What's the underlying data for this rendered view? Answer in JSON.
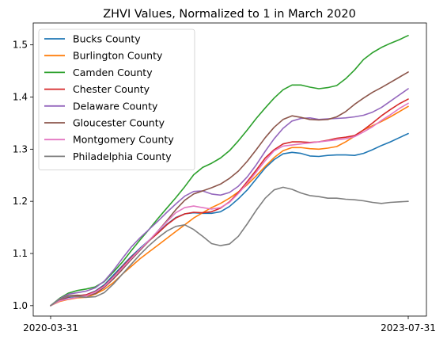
{
  "chart_data": {
    "type": "line",
    "title": "ZHVI Values, Normalized to 1 in March 2020",
    "xlabel": "",
    "ylabel": "",
    "x_tick_labels": [
      "2020-03-31",
      "2023-07-31"
    ],
    "x_start": "2020-03-31",
    "x_end": "2023-07-31",
    "ylim": [
      0.98,
      1.542
    ],
    "y_ticks": [
      1.0,
      1.1,
      1.2,
      1.3,
      1.4,
      1.5
    ],
    "y_tick_labels": [
      "1.0",
      "1.1",
      "1.2",
      "1.3",
      "1.4",
      "1.5"
    ],
    "grid": false,
    "legend_position": "upper-left",
    "x": [
      "2020-03",
      "2020-04",
      "2020-05",
      "2020-06",
      "2020-07",
      "2020-08",
      "2020-09",
      "2020-10",
      "2020-11",
      "2020-12",
      "2021-01",
      "2021-02",
      "2021-03",
      "2021-04",
      "2021-05",
      "2021-06",
      "2021-07",
      "2021-08",
      "2021-09",
      "2021-10",
      "2021-11",
      "2021-12",
      "2022-01",
      "2022-02",
      "2022-03",
      "2022-04",
      "2022-05",
      "2022-06",
      "2022-07",
      "2022-08",
      "2022-09",
      "2022-10",
      "2022-11",
      "2022-12",
      "2023-01",
      "2023-02",
      "2023-03",
      "2023-04",
      "2023-05",
      "2023-06",
      "2023-07"
    ],
    "series": [
      {
        "name": "Bucks County",
        "color": "#1f77b4",
        "values": [
          1.0,
          1.01,
          1.016,
          1.018,
          1.021,
          1.028,
          1.04,
          1.058,
          1.076,
          1.094,
          1.11,
          1.125,
          1.14,
          1.156,
          1.169,
          1.176,
          1.178,
          1.177,
          1.177,
          1.18,
          1.19,
          1.205,
          1.222,
          1.243,
          1.264,
          1.28,
          1.291,
          1.294,
          1.292,
          1.287,
          1.286,
          1.288,
          1.289,
          1.289,
          1.288,
          1.292,
          1.299,
          1.307,
          1.314,
          1.322,
          1.33
        ]
      },
      {
        "name": "Burlington County",
        "color": "#ff7f0e",
        "values": [
          1.0,
          1.008,
          1.012,
          1.015,
          1.016,
          1.022,
          1.031,
          1.044,
          1.06,
          1.075,
          1.09,
          1.103,
          1.116,
          1.129,
          1.142,
          1.155,
          1.168,
          1.178,
          1.188,
          1.196,
          1.206,
          1.218,
          1.232,
          1.249,
          1.267,
          1.284,
          1.297,
          1.303,
          1.303,
          1.301,
          1.3,
          1.302,
          1.305,
          1.314,
          1.325,
          1.337,
          1.345,
          1.353,
          1.362,
          1.372,
          1.382
        ]
      },
      {
        "name": "Camden County",
        "color": "#2ca02c",
        "values": [
          1.0,
          1.014,
          1.024,
          1.029,
          1.032,
          1.036,
          1.046,
          1.064,
          1.083,
          1.105,
          1.126,
          1.146,
          1.167,
          1.187,
          1.207,
          1.228,
          1.251,
          1.265,
          1.273,
          1.283,
          1.297,
          1.316,
          1.337,
          1.359,
          1.379,
          1.398,
          1.414,
          1.423,
          1.423,
          1.419,
          1.416,
          1.418,
          1.422,
          1.435,
          1.452,
          1.472,
          1.485,
          1.495,
          1.503,
          1.51,
          1.518
        ]
      },
      {
        "name": "Chester County",
        "color": "#d62728",
        "values": [
          1.0,
          1.011,
          1.017,
          1.019,
          1.021,
          1.027,
          1.038,
          1.055,
          1.074,
          1.092,
          1.108,
          1.124,
          1.139,
          1.155,
          1.168,
          1.176,
          1.179,
          1.178,
          1.18,
          1.187,
          1.199,
          1.217,
          1.238,
          1.26,
          1.283,
          1.299,
          1.31,
          1.314,
          1.314,
          1.313,
          1.314,
          1.317,
          1.321,
          1.323,
          1.326,
          1.337,
          1.35,
          1.364,
          1.376,
          1.387,
          1.396
        ]
      },
      {
        "name": "Delaware County",
        "color": "#9467bd",
        "values": [
          1.0,
          1.013,
          1.022,
          1.025,
          1.028,
          1.034,
          1.047,
          1.067,
          1.09,
          1.112,
          1.13,
          1.146,
          1.162,
          1.179,
          1.195,
          1.21,
          1.219,
          1.22,
          1.214,
          1.212,
          1.217,
          1.229,
          1.247,
          1.27,
          1.296,
          1.32,
          1.34,
          1.354,
          1.359,
          1.36,
          1.357,
          1.358,
          1.359,
          1.36,
          1.362,
          1.365,
          1.371,
          1.38,
          1.392,
          1.404,
          1.416
        ]
      },
      {
        "name": "Gloucester County",
        "color": "#8c564b",
        "values": [
          1.0,
          1.012,
          1.019,
          1.02,
          1.019,
          1.023,
          1.035,
          1.051,
          1.069,
          1.088,
          1.106,
          1.124,
          1.143,
          1.163,
          1.184,
          1.202,
          1.214,
          1.22,
          1.226,
          1.233,
          1.244,
          1.258,
          1.277,
          1.299,
          1.322,
          1.342,
          1.357,
          1.364,
          1.361,
          1.357,
          1.356,
          1.357,
          1.362,
          1.372,
          1.386,
          1.398,
          1.409,
          1.418,
          1.428,
          1.438,
          1.448
        ]
      },
      {
        "name": "Montgomery County",
        "color": "#e377c2",
        "values": [
          1.0,
          1.009,
          1.013,
          1.016,
          1.019,
          1.026,
          1.037,
          1.054,
          1.072,
          1.09,
          1.108,
          1.125,
          1.143,
          1.161,
          1.178,
          1.188,
          1.191,
          1.188,
          1.185,
          1.188,
          1.198,
          1.215,
          1.235,
          1.256,
          1.278,
          1.297,
          1.306,
          1.308,
          1.31,
          1.312,
          1.314,
          1.316,
          1.318,
          1.32,
          1.324,
          1.333,
          1.343,
          1.355,
          1.366,
          1.378,
          1.388
        ]
      },
      {
        "name": "Philadelphia County",
        "color": "#7f7f7f",
        "values": [
          1.0,
          1.012,
          1.018,
          1.017,
          1.016,
          1.017,
          1.025,
          1.041,
          1.06,
          1.079,
          1.098,
          1.115,
          1.13,
          1.143,
          1.152,
          1.155,
          1.146,
          1.133,
          1.119,
          1.115,
          1.118,
          1.133,
          1.157,
          1.183,
          1.206,
          1.222,
          1.227,
          1.223,
          1.216,
          1.211,
          1.209,
          1.206,
          1.206,
          1.204,
          1.203,
          1.201,
          1.198,
          1.196,
          1.198,
          1.199,
          1.2
        ]
      }
    ]
  }
}
